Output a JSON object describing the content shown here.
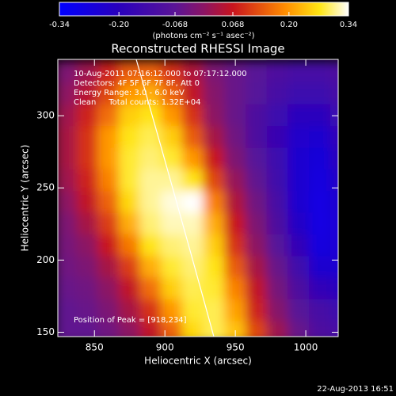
{
  "chart_data": {
    "type": "heatmap",
    "title": "Reconstructed RHESSI Image",
    "annotations": [
      "10-Aug-2011 07:16:12.000 to 07:17:12.000",
      "Detectors: 4F 5F 6F 7F 8F, Att 0",
      "Energy Range: 3.0 - 6.0 keV",
      "Clean     Total counts: 1.32E+04"
    ],
    "peak_label": "Position of Peak = [918,234]",
    "x_label": "Heliocentric X (arcsec)",
    "y_label": "Heliocentric Y (arcsec)",
    "colorbar_label": "(photons cm⁻² s⁻¹ asec⁻²)",
    "timestamp": "22-Aug-2013 16:51",
    "xlim": [
      824,
      1023
    ],
    "ylim": [
      147,
      339
    ],
    "xticks": [
      850,
      900,
      950,
      1000
    ],
    "yticks": [
      150,
      200,
      250,
      300
    ],
    "zlim": [
      -0.34,
      0.34
    ],
    "zticks": [
      -0.34,
      {
        "value": -0.2,
        "label": "-0.20"
      },
      -0.068,
      0.068,
      {
        "value": 0.2,
        "label": "0.20"
      },
      0.34
    ],
    "x": [
      830,
      845,
      860,
      875,
      890,
      905,
      920,
      935,
      950,
      965,
      980,
      995,
      1010,
      1025
    ],
    "y": [
      330,
      315,
      300,
      285,
      270,
      255,
      240,
      225,
      210,
      195,
      180,
      165,
      150
    ],
    "z": [
      [
        -0.02,
        0.02,
        0.08,
        0.14,
        0.15,
        0.1,
        0.04,
        -0.02,
        -0.05,
        -0.07,
        -0.1,
        -0.12,
        -0.12,
        -0.1
      ],
      [
        0.0,
        0.05,
        0.12,
        0.2,
        0.22,
        0.15,
        0.06,
        -0.01,
        -0.05,
        -0.08,
        -0.12,
        -0.15,
        -0.15,
        -0.12
      ],
      [
        0.02,
        0.08,
        0.16,
        0.25,
        0.27,
        0.2,
        0.1,
        0.0,
        -0.05,
        -0.1,
        -0.15,
        -0.2,
        -0.2,
        -0.15
      ],
      [
        0.03,
        0.1,
        0.2,
        0.27,
        0.29,
        0.25,
        0.14,
        0.03,
        -0.04,
        -0.1,
        -0.16,
        -0.23,
        -0.24,
        -0.18
      ],
      [
        0.03,
        0.1,
        0.2,
        0.28,
        0.3,
        0.28,
        0.2,
        0.07,
        -0.02,
        -0.08,
        -0.15,
        -0.24,
        -0.26,
        -0.2
      ],
      [
        0.02,
        0.08,
        0.18,
        0.28,
        0.31,
        0.31,
        0.27,
        0.12,
        0.01,
        -0.06,
        -0.14,
        -0.24,
        -0.27,
        -0.22
      ],
      [
        0.0,
        0.06,
        0.15,
        0.26,
        0.31,
        0.33,
        0.34,
        0.18,
        0.04,
        -0.04,
        -0.12,
        -0.24,
        -0.28,
        -0.24
      ],
      [
        -0.02,
        0.03,
        0.11,
        0.22,
        0.3,
        0.32,
        0.32,
        0.22,
        0.07,
        -0.02,
        -0.1,
        -0.22,
        -0.28,
        -0.25
      ],
      [
        -0.03,
        0.0,
        0.07,
        0.17,
        0.27,
        0.3,
        0.31,
        0.25,
        0.1,
        0.0,
        -0.08,
        -0.18,
        -0.27,
        -0.25
      ],
      [
        -0.04,
        -0.02,
        0.03,
        0.11,
        0.22,
        0.28,
        0.3,
        0.27,
        0.14,
        0.03,
        -0.05,
        -0.14,
        -0.24,
        -0.24
      ],
      [
        -0.05,
        -0.04,
        0.0,
        0.06,
        0.16,
        0.25,
        0.29,
        0.28,
        0.18,
        0.06,
        -0.03,
        -0.1,
        -0.18,
        -0.2
      ],
      [
        -0.06,
        -0.05,
        -0.02,
        0.03,
        0.1,
        0.2,
        0.28,
        0.29,
        0.21,
        0.08,
        -0.01,
        -0.07,
        -0.12,
        -0.15
      ],
      [
        -0.06,
        -0.06,
        -0.04,
        0.0,
        0.06,
        0.15,
        0.26,
        0.29,
        0.24,
        0.12,
        0.02,
        -0.05,
        -0.1,
        -0.12
      ]
    ]
  }
}
